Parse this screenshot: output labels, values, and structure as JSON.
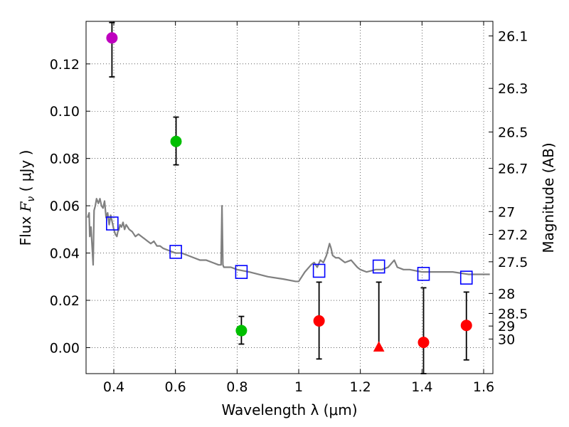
{
  "chart_data": {
    "type": "scatter",
    "title": "",
    "xlabel": "Wavelength  λ (μm)",
    "ylabel": "Flux  F_ν  ( μJy )",
    "ylabel_parts": {
      "prefix": "Flux  ",
      "symbol": "F",
      "subscript": "ν",
      "suffix": "  ( μJy )"
    },
    "y2label": "Magnitude (AB)",
    "xlim": [
      0.31,
      1.63
    ],
    "ylim": [
      -0.011,
      0.138
    ],
    "grid": true,
    "x_ticks": [
      0.4,
      0.6,
      0.8,
      1.0,
      1.2,
      1.4,
      1.6
    ],
    "x_tick_labels": [
      "0.4",
      "0.6",
      "0.8",
      "1",
      "1.2",
      "1.4",
      "1.6"
    ],
    "y_ticks": [
      0.0,
      0.02,
      0.04,
      0.06,
      0.08,
      0.1,
      0.12
    ],
    "y_tick_labels": [
      "0.00",
      "0.02",
      "0.04",
      "0.06",
      "0.08",
      "0.10",
      "0.12"
    ],
    "mag_ticks": [
      26.1,
      26.3,
      26.5,
      26.7,
      27,
      27.2,
      27.5,
      28,
      28.5,
      29,
      30
    ],
    "mag_tick_labels": [
      "26.1",
      "26.3",
      "26.5",
      "26.7",
      "27",
      "27.2",
      "27.5",
      "28",
      "28.5",
      "29",
      "30"
    ],
    "colors": {
      "magenta": "#bf00bf",
      "green": "#00bf00",
      "red": "#ff0000",
      "model_band": "#0000ff",
      "sed_line": "#808080",
      "errorbar": "#000000"
    },
    "sed_model": {
      "x": [
        0.315,
        0.32,
        0.322,
        0.326,
        0.33,
        0.333,
        0.336,
        0.34,
        0.344,
        0.35,
        0.355,
        0.36,
        0.365,
        0.37,
        0.375,
        0.38,
        0.385,
        0.39,
        0.395,
        0.4,
        0.405,
        0.41,
        0.413,
        0.417,
        0.42,
        0.425,
        0.43,
        0.435,
        0.44,
        0.445,
        0.45,
        0.46,
        0.47,
        0.48,
        0.49,
        0.5,
        0.51,
        0.52,
        0.53,
        0.54,
        0.55,
        0.56,
        0.58,
        0.6,
        0.62,
        0.64,
        0.66,
        0.68,
        0.7,
        0.72,
        0.74,
        0.748,
        0.751,
        0.754,
        0.757,
        0.76,
        0.78,
        0.8,
        0.84,
        0.9,
        0.95,
        0.99,
        1.0,
        1.02,
        1.04,
        1.05,
        1.06,
        1.07,
        1.08,
        1.09,
        1.1,
        1.105,
        1.11,
        1.12,
        1.13,
        1.15,
        1.17,
        1.19,
        1.2,
        1.22,
        1.25,
        1.27,
        1.29,
        1.31,
        1.32,
        1.34,
        1.36,
        1.4,
        1.45,
        1.5,
        1.55,
        1.6,
        1.62
      ],
      "y": [
        0.055,
        0.057,
        0.047,
        0.051,
        0.042,
        0.035,
        0.058,
        0.06,
        0.063,
        0.061,
        0.063,
        0.06,
        0.059,
        0.062,
        0.055,
        0.057,
        0.052,
        0.056,
        0.053,
        0.05,
        0.048,
        0.047,
        0.049,
        0.05,
        0.052,
        0.051,
        0.053,
        0.05,
        0.052,
        0.051,
        0.05,
        0.049,
        0.047,
        0.048,
        0.047,
        0.046,
        0.045,
        0.044,
        0.045,
        0.043,
        0.043,
        0.042,
        0.041,
        0.04,
        0.04,
        0.039,
        0.038,
        0.037,
        0.037,
        0.036,
        0.035,
        0.035,
        0.06,
        0.035,
        0.034,
        0.034,
        0.034,
        0.033,
        0.032,
        0.03,
        0.029,
        0.028,
        0.028,
        0.032,
        0.035,
        0.036,
        0.034,
        0.037,
        0.036,
        0.039,
        0.044,
        0.042,
        0.039,
        0.038,
        0.038,
        0.036,
        0.037,
        0.034,
        0.033,
        0.032,
        0.033,
        0.033,
        0.034,
        0.037,
        0.034,
        0.033,
        0.033,
        0.032,
        0.032,
        0.032,
        0.031,
        0.031,
        0.031
      ]
    },
    "model_bands": {
      "x": [
        0.395,
        0.601,
        0.814,
        1.066,
        1.26,
        1.405,
        1.544
      ],
      "y": [
        0.0525,
        0.0405,
        0.032,
        0.0325,
        0.0343,
        0.0312,
        0.0296
      ]
    },
    "observed": [
      {
        "x": 0.394,
        "y": 0.131,
        "err_low": 0.1145,
        "err_high": 0.1375,
        "color": "magenta",
        "marker": "circle"
      },
      {
        "x": 0.602,
        "y": 0.0872,
        "err_low": 0.0773,
        "err_high": 0.0975,
        "color": "green",
        "marker": "circle"
      },
      {
        "x": 0.814,
        "y": 0.0072,
        "err_low": 0.0015,
        "err_high": 0.0132,
        "color": "green",
        "marker": "circle"
      },
      {
        "x": 1.066,
        "y": 0.0113,
        "err_low": -0.0048,
        "err_high": 0.0277,
        "color": "red",
        "marker": "circle"
      },
      {
        "x": 1.26,
        "y": 0.0,
        "err_low": 0.0,
        "err_high": 0.0277,
        "color": "red",
        "marker": "triangle"
      },
      {
        "x": 1.405,
        "y": 0.0022,
        "err_low": -0.011,
        "err_high": 0.0253,
        "color": "red",
        "marker": "circle"
      },
      {
        "x": 1.544,
        "y": 0.0094,
        "err_low": -0.0052,
        "err_high": 0.0235,
        "color": "red",
        "marker": "circle"
      }
    ]
  }
}
